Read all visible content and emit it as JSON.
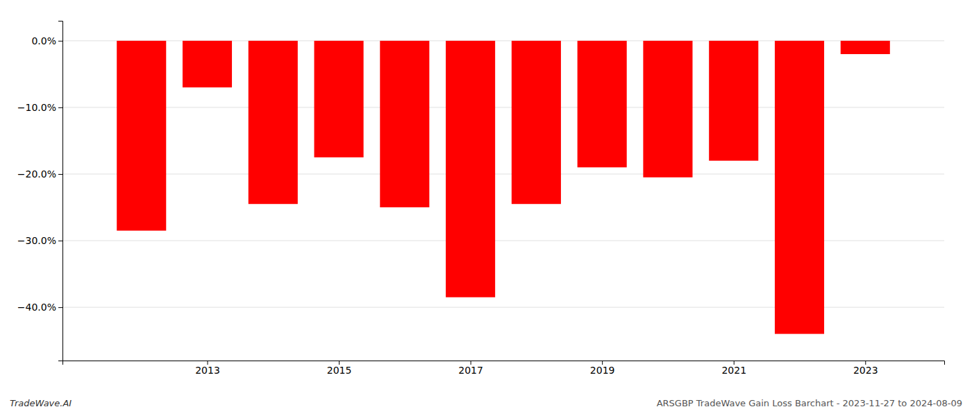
{
  "chart_data": {
    "type": "bar",
    "x": [
      2012,
      2013,
      2014,
      2015,
      2016,
      2017,
      2018,
      2019,
      2020,
      2021,
      2022,
      2023
    ],
    "values": [
      -28.5,
      -7.0,
      -24.5,
      -17.5,
      -25.0,
      -38.5,
      -24.5,
      -19.0,
      -20.5,
      -18.0,
      -44.0,
      -2.0
    ],
    "color": "#ff0000",
    "xlim": [
      2010.8,
      2024.2
    ],
    "xticks": [
      2013,
      2015,
      2017,
      2019,
      2021,
      2023
    ],
    "ylim": [
      -48,
      3
    ],
    "yticks": [
      {
        "value": 0.0,
        "label": "0.0%"
      },
      {
        "value": -10.0,
        "label": "−10.0%"
      },
      {
        "value": -20.0,
        "label": "−20.0%"
      },
      {
        "value": -30.0,
        "label": "−30.0%"
      },
      {
        "value": -40.0,
        "label": "−40.0%"
      }
    ],
    "grid": true,
    "annotations": [
      "TradeWave.AI",
      "ARSGBP TradeWave Gain Loss Barchart - 2023-11-27 to 2024-08-09"
    ]
  }
}
